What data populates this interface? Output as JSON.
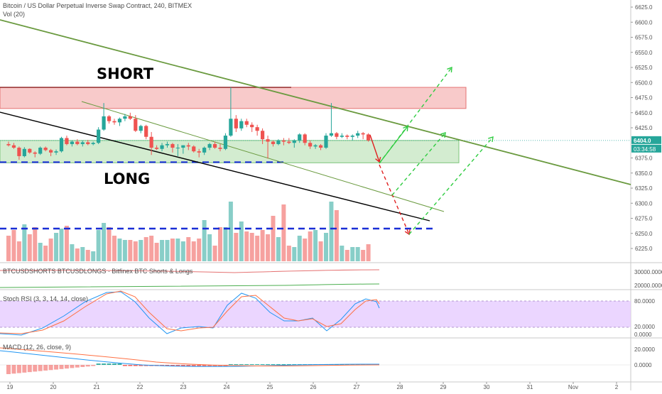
{
  "header": {
    "title": "Bitcoin / US Dollar Perpetual Inverse Swap Contract, 240, BITMEX",
    "vol_label": "Vol (20)"
  },
  "annotations": {
    "short_label": "SHORT",
    "long_label": "LONG"
  },
  "price_axis": {
    "ticks": [
      "6625.0",
      "6600.0",
      "6575.0",
      "6550.0",
      "6525.0",
      "6500.0",
      "6475.0",
      "6450.0",
      "6425.0",
      "6375.0",
      "6350.0",
      "6325.0",
      "6300.0",
      "6275.0",
      "6250.0",
      "6225.0"
    ],
    "current_price": "6404.0",
    "countdown": "03:34:58",
    "current_color": "#26a69a"
  },
  "time_axis": {
    "ticks": [
      "19",
      "20",
      "21",
      "22",
      "23",
      "24",
      "25",
      "26",
      "27",
      "28",
      "29",
      "30",
      "31",
      "Nov",
      "2"
    ]
  },
  "indicators": {
    "shorts_longs": {
      "label": "BTCUSDSHORTS BTCUSDLONGS · Bitfinex BTC Shorts & Longs",
      "ticks": [
        "30000.0000",
        "20000.0000"
      ]
    },
    "stoch": {
      "label": "Stoch RSI (3, 3, 14, 14, close)",
      "ticks": [
        "80.0000",
        "20.0000",
        "0.0000"
      ]
    },
    "macd": {
      "label": "MACD (12, 26, close, 9)",
      "ticks": [
        "20.0000",
        "0.0000"
      ]
    }
  },
  "colors": {
    "up": "#26a69a",
    "down": "#ef5350",
    "trend_green": "#6a9a3f",
    "short_zone": "#f4a6a6",
    "long_zone": "#b5dfb0",
    "stoch_band": "#e6ccff",
    "support_dash": "#1a2fd6"
  },
  "chart_data": {
    "type": "candlestick",
    "ylim": [
      6205,
      6640
    ],
    "x_start": "Oct 19",
    "candles": [
      [
        6398,
        6402,
        6394,
        6396
      ],
      [
        6396,
        6400,
        6390,
        6392
      ],
      [
        6392,
        6394,
        6372,
        6378
      ],
      [
        6378,
        6393,
        6376,
        6390
      ],
      [
        6390,
        6391,
        6382,
        6384
      ],
      [
        6384,
        6386,
        6376,
        6382
      ],
      [
        6382,
        6394,
        6380,
        6392
      ],
      [
        6392,
        6394,
        6386,
        6388
      ],
      [
        6388,
        6390,
        6378,
        6384
      ],
      [
        6384,
        6389,
        6380,
        6386
      ],
      [
        6386,
        6410,
        6384,
        6408
      ],
      [
        6408,
        6412,
        6396,
        6398
      ],
      [
        6398,
        6404,
        6394,
        6402
      ],
      [
        6402,
        6406,
        6396,
        6398
      ],
      [
        6398,
        6404,
        6394,
        6401
      ],
      [
        6401,
        6405,
        6396,
        6398
      ],
      [
        6398,
        6402,
        6396,
        6400
      ],
      [
        6400,
        6426,
        6398,
        6422
      ],
      [
        6422,
        6466,
        6420,
        6444
      ],
      [
        6444,
        6446,
        6432,
        6436
      ],
      [
        6436,
        6440,
        6430,
        6434
      ],
      [
        6434,
        6442,
        6428,
        6440
      ],
      [
        6440,
        6448,
        6436,
        6444
      ],
      [
        6444,
        6450,
        6438,
        6440
      ],
      [
        6440,
        6446,
        6418,
        6420
      ],
      [
        6420,
        6430,
        6416,
        6428
      ],
      [
        6428,
        6430,
        6406,
        6410
      ],
      [
        6410,
        6418,
        6380,
        6392
      ],
      [
        6392,
        6396,
        6388,
        6390
      ],
      [
        6390,
        6400,
        6386,
        6396
      ],
      [
        6396,
        6402,
        6392,
        6398
      ],
      [
        6398,
        6400,
        6384,
        6392
      ],
      [
        6392,
        6398,
        6378,
        6392
      ],
      [
        6392,
        6396,
        6382,
        6396
      ],
      [
        6396,
        6400,
        6388,
        6394
      ],
      [
        6394,
        6396,
        6384,
        6386
      ],
      [
        6386,
        6390,
        6376,
        6384
      ],
      [
        6384,
        6394,
        6380,
        6392
      ],
      [
        6392,
        6400,
        6388,
        6398
      ],
      [
        6398,
        6402,
        6390,
        6392
      ],
      [
        6392,
        6398,
        6386,
        6390
      ],
      [
        6390,
        6416,
        6388,
        6412
      ],
      [
        6412,
        6492,
        6410,
        6440
      ],
      [
        6440,
        6446,
        6418,
        6424
      ],
      [
        6424,
        6440,
        6420,
        6436
      ],
      [
        6436,
        6440,
        6426,
        6430
      ],
      [
        6430,
        6434,
        6418,
        6426
      ],
      [
        6426,
        6430,
        6412,
        6420
      ],
      [
        6420,
        6424,
        6398,
        6406
      ],
      [
        6406,
        6412,
        6374,
        6402
      ],
      [
        6402,
        6404,
        6394,
        6398
      ],
      [
        6398,
        6406,
        6396,
        6404
      ],
      [
        6404,
        6408,
        6396,
        6402
      ],
      [
        6402,
        6408,
        6398,
        6400
      ],
      [
        6400,
        6406,
        6392,
        6404
      ],
      [
        6404,
        6416,
        6400,
        6414
      ],
      [
        6414,
        6416,
        6396,
        6400
      ],
      [
        6400,
        6404,
        6390,
        6394
      ],
      [
        6394,
        6398,
        6390,
        6396
      ],
      [
        6396,
        6398,
        6388,
        6392
      ],
      [
        6392,
        6416,
        6390,
        6412
      ],
      [
        6412,
        6466,
        6410,
        6416
      ],
      [
        6416,
        6418,
        6406,
        6410
      ],
      [
        6410,
        6416,
        6408,
        6412
      ],
      [
        6412,
        6414,
        6406,
        6410
      ],
      [
        6410,
        6414,
        6404,
        6412
      ],
      [
        6412,
        6420,
        6408,
        6416
      ],
      [
        6416,
        6418,
        6406,
        6414
      ],
      [
        6414,
        6416,
        6402,
        6404
      ]
    ],
    "volume": [
      18,
      22,
      14,
      26,
      19,
      24,
      13,
      11,
      16,
      20,
      23,
      25,
      12,
      9,
      10,
      8,
      7,
      22,
      27,
      24,
      18,
      16,
      15,
      15,
      14,
      15,
      17,
      18,
      13,
      15,
      15,
      16,
      16,
      14,
      17,
      14,
      16,
      29,
      19,
      11,
      24,
      24,
      42,
      20,
      28,
      21,
      20,
      18,
      22,
      19,
      32,
      17,
      40,
      11,
      10,
      18,
      16,
      21,
      22,
      14,
      20,
      42,
      36,
      11,
      8,
      10,
      10,
      8,
      12
    ],
    "support_volume_level": 23
  }
}
